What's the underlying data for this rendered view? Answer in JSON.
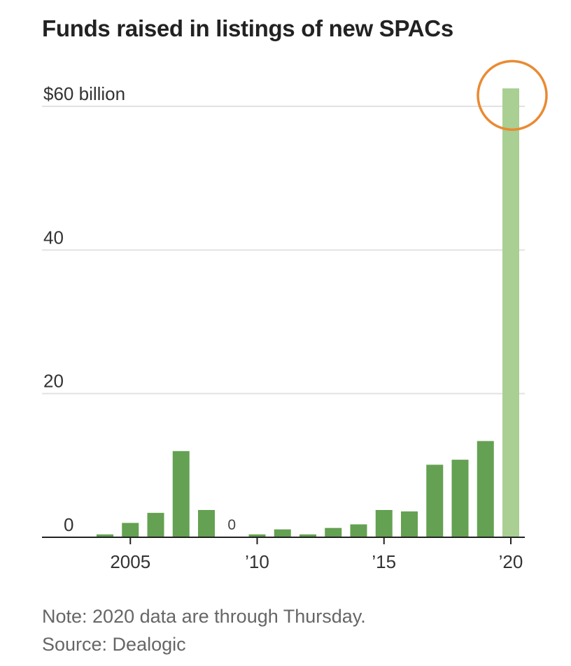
{
  "colors": {
    "bar": "#64a152",
    "bar_highlight": "#a9cf93",
    "gridline": "#e2e2e2",
    "axis": "#222222",
    "circle": "#ea8a32"
  },
  "chart_data": {
    "type": "bar",
    "title": "Funds raised in listings of new SPACs",
    "unit_label": "$60 billion",
    "ylabel": "",
    "xlabel": "",
    "ylim": [
      0,
      63
    ],
    "y_ticks": [
      {
        "value": 0,
        "label": "0"
      },
      {
        "value": 20,
        "label": "20"
      },
      {
        "value": 40,
        "label": "40"
      },
      {
        "value": 60,
        "label": "$60 billion"
      }
    ],
    "x_ticks": [
      {
        "year": 2005,
        "label": "2005"
      },
      {
        "year": 2010,
        "label": "’10"
      },
      {
        "year": 2015,
        "label": "’15"
      },
      {
        "year": 2020,
        "label": "’20"
      }
    ],
    "categories": [
      2004,
      2005,
      2006,
      2007,
      2008,
      2009,
      2010,
      2011,
      2012,
      2013,
      2014,
      2015,
      2016,
      2017,
      2018,
      2019,
      2020
    ],
    "values": [
      0.4,
      2.0,
      3.4,
      12.0,
      3.8,
      0,
      0.4,
      1.1,
      0.4,
      1.3,
      1.8,
      3.8,
      3.6,
      10.1,
      10.8,
      13.4,
      62.5
    ],
    "highlight": [
      false,
      false,
      false,
      false,
      false,
      false,
      false,
      false,
      false,
      false,
      false,
      false,
      false,
      false,
      false,
      false,
      true
    ],
    "annotations": [
      {
        "year": 2009,
        "text": "0"
      }
    ],
    "grid": true
  },
  "footer": {
    "note": "Note: 2020 data are through Thursday.",
    "source": "Source: Dealogic"
  }
}
